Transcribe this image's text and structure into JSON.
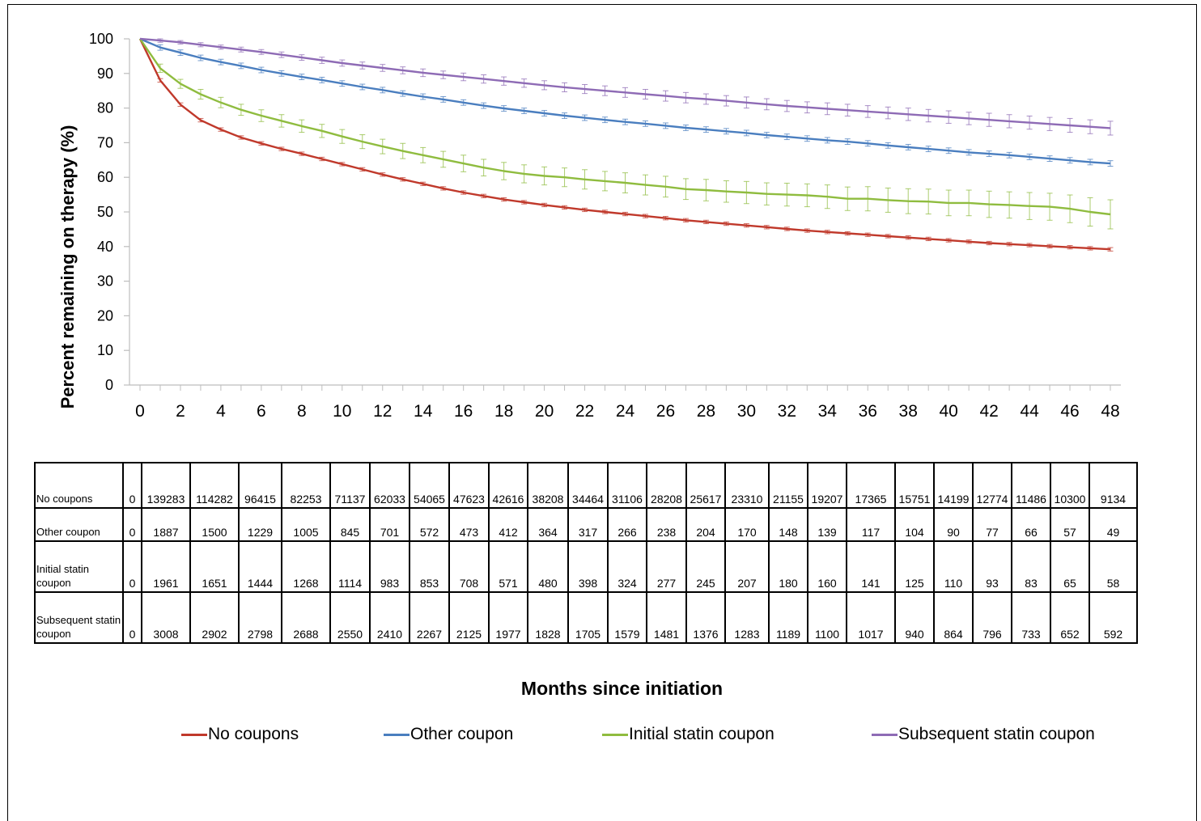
{
  "chart_data": {
    "type": "line",
    "xlabel": "Months since initiation",
    "ylabel": "Percent remaining on therapy (%)",
    "xlim": [
      0,
      48
    ],
    "ylim": [
      0,
      100
    ],
    "x_ticks": [
      "0",
      "2",
      "4",
      "6",
      "8",
      "10",
      "12",
      "14",
      "16",
      "18",
      "20",
      "22",
      "24",
      "26",
      "28",
      "30",
      "32",
      "34",
      "36",
      "38",
      "40",
      "42",
      "44",
      "46",
      "48"
    ],
    "y_ticks": [
      "0",
      "10",
      "20",
      "30",
      "40",
      "50",
      "60",
      "70",
      "80",
      "90",
      "100"
    ],
    "legend_position": "bottom",
    "error_bars": true,
    "x": [
      0,
      1,
      2,
      3,
      4,
      5,
      6,
      7,
      8,
      9,
      10,
      11,
      12,
      13,
      14,
      15,
      16,
      17,
      18,
      19,
      20,
      21,
      22,
      23,
      24,
      25,
      26,
      27,
      28,
      29,
      30,
      31,
      32,
      33,
      34,
      35,
      36,
      37,
      38,
      39,
      40,
      41,
      42,
      43,
      44,
      45,
      46,
      47,
      48
    ],
    "series": [
      {
        "name": "No coupons",
        "color": "#c0392b",
        "values": [
          100,
          88,
          81,
          76.5,
          73.8,
          71.5,
          69.8,
          68.2,
          66.8,
          65.3,
          63.8,
          62.3,
          60.8,
          59.4,
          58.1,
          56.8,
          55.6,
          54.6,
          53.6,
          52.8,
          52.0,
          51.3,
          50.6,
          50.0,
          49.4,
          48.8,
          48.2,
          47.6,
          47.1,
          46.6,
          46.1,
          45.6,
          45.1,
          44.6,
          44.2,
          43.8,
          43.4,
          43.0,
          42.6,
          42.2,
          41.8,
          41.4,
          41.0,
          40.7,
          40.4,
          40.1,
          39.8,
          39.5,
          39.2
        ],
        "err": 0.5
      },
      {
        "name": "Other coupon",
        "color": "#4a7ebf",
        "values": [
          100,
          97.5,
          96.0,
          94.5,
          93.3,
          92.2,
          91.0,
          90.0,
          89.0,
          88.1,
          87.1,
          86.1,
          85.2,
          84.2,
          83.3,
          82.5,
          81.6,
          80.7,
          79.9,
          79.2,
          78.5,
          77.8,
          77.2,
          76.6,
          76.0,
          75.5,
          74.9,
          74.3,
          73.8,
          73.3,
          72.8,
          72.2,
          71.7,
          71.2,
          70.7,
          70.3,
          69.8,
          69.2,
          68.7,
          68.2,
          67.7,
          67.2,
          66.8,
          66.4,
          65.9,
          65.4,
          64.9,
          64.4,
          64.0
        ],
        "err": 0.8
      },
      {
        "name": "Initial statin coupon",
        "color": "#8fbc3f",
        "values": [
          100,
          91.5,
          87.0,
          84.0,
          81.6,
          79.5,
          77.8,
          76.3,
          74.8,
          73.4,
          71.8,
          70.3,
          68.9,
          67.6,
          66.4,
          65.2,
          64.0,
          62.8,
          61.8,
          61.0,
          60.4,
          60.0,
          59.4,
          58.9,
          58.4,
          57.8,
          57.3,
          56.6,
          56.3,
          55.9,
          55.6,
          55.2,
          55.0,
          54.8,
          54.4,
          53.8,
          53.8,
          53.4,
          53.1,
          53.0,
          52.6,
          52.6,
          52.2,
          52.0,
          51.7,
          51.5,
          50.9,
          50.0,
          49.3
        ],
        "err": [
          0,
          1.2,
          1.3,
          1.4,
          1.5,
          1.6,
          1.7,
          1.8,
          1.8,
          1.9,
          2.0,
          2.0,
          2.1,
          2.2,
          2.2,
          2.3,
          2.4,
          2.4,
          2.5,
          2.6,
          2.6,
          2.7,
          2.8,
          2.8,
          2.9,
          2.9,
          3.0,
          3.0,
          3.1,
          3.1,
          3.2,
          3.2,
          3.3,
          3.3,
          3.4,
          3.4,
          3.5,
          3.5,
          3.6,
          3.6,
          3.7,
          3.7,
          3.8,
          3.8,
          3.9,
          3.9,
          4.0,
          4.1,
          4.2
        ]
      },
      {
        "name": "Subsequent statin coupon",
        "color": "#8e6bb5",
        "values": [
          100,
          99.5,
          99.0,
          98.3,
          97.6,
          96.9,
          96.2,
          95.4,
          94.6,
          93.8,
          93.0,
          92.3,
          91.6,
          90.9,
          90.2,
          89.6,
          89.0,
          88.4,
          87.8,
          87.2,
          86.6,
          86.0,
          85.5,
          85.0,
          84.5,
          84.0,
          83.5,
          83.0,
          82.6,
          82.1,
          81.6,
          81.1,
          80.6,
          80.2,
          79.8,
          79.4,
          79.0,
          78.6,
          78.2,
          77.8,
          77.4,
          77.0,
          76.6,
          76.2,
          75.8,
          75.4,
          75.0,
          74.6,
          74.2
        ],
        "err": [
          0,
          0.5,
          0.5,
          0.6,
          0.6,
          0.7,
          0.7,
          0.8,
          0.8,
          0.9,
          0.9,
          1.0,
          1.0,
          1.0,
          1.1,
          1.1,
          1.1,
          1.2,
          1.2,
          1.2,
          1.3,
          1.3,
          1.3,
          1.4,
          1.4,
          1.4,
          1.5,
          1.5,
          1.5,
          1.5,
          1.6,
          1.6,
          1.6,
          1.6,
          1.7,
          1.7,
          1.7,
          1.7,
          1.8,
          1.8,
          1.8,
          1.8,
          1.9,
          1.9,
          1.9,
          1.9,
          2.0,
          2.0,
          2.0
        ]
      }
    ]
  },
  "table": {
    "rows": [
      {
        "label": "No coupons",
        "values": [
          "0",
          "139283",
          "114282",
          "96415",
          "82253",
          "71137",
          "62033",
          "54065",
          "47623",
          "42616",
          "38208",
          "34464",
          "31106",
          "28208",
          "25617",
          "23310",
          "21155",
          "19207",
          "17365",
          "15751",
          "14199",
          "12774",
          "11486",
          "10300",
          "9134"
        ]
      },
      {
        "label": "Other coupon",
        "values": [
          "0",
          "1887",
          "1500",
          "1229",
          "1005",
          "845",
          "701",
          "572",
          "473",
          "412",
          "364",
          "317",
          "266",
          "238",
          "204",
          "170",
          "148",
          "139",
          "117",
          "104",
          "90",
          "77",
          "66",
          "57",
          "49"
        ]
      },
      {
        "label": "Initial statin coupon",
        "values": [
          "0",
          "1961",
          "1651",
          "1444",
          "1268",
          "1114",
          "983",
          "853",
          "708",
          "571",
          "480",
          "398",
          "324",
          "277",
          "245",
          "207",
          "180",
          "160",
          "141",
          "125",
          "110",
          "93",
          "83",
          "65",
          "58"
        ]
      },
      {
        "label": "Subsequent statin coupon",
        "values": [
          "0",
          "3008",
          "2902",
          "2798",
          "2688",
          "2550",
          "2410",
          "2267",
          "2125",
          "1977",
          "1828",
          "1705",
          "1579",
          "1481",
          "1376",
          "1283",
          "1189",
          "1100",
          "1017",
          "940",
          "864",
          "796",
          "733",
          "652",
          "592"
        ]
      }
    ]
  }
}
